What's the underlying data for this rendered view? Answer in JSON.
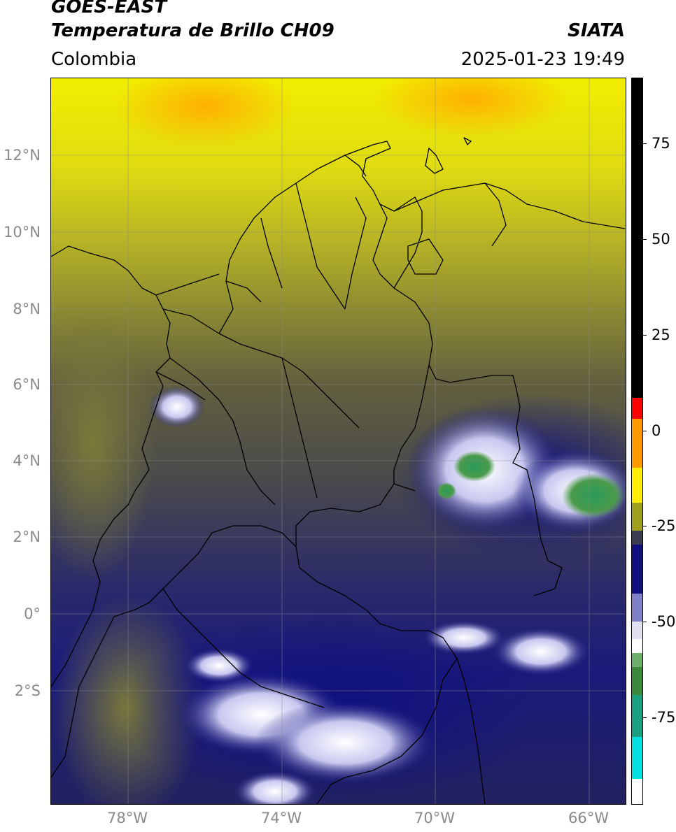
{
  "header": {
    "line1": "GOES-EAST",
    "line2": "Temperatura de Brillo CH09",
    "region": "Colombia",
    "org": "SIATA",
    "datetime": "2025-01-23 19:49"
  },
  "map": {
    "lat_labels": [
      "12°N",
      "10°N",
      "8°N",
      "6°N",
      "4°N",
      "2°N",
      "0°",
      "2°S"
    ],
    "lon_labels": [
      "78°W",
      "74°W",
      "70°W",
      "66°W"
    ]
  },
  "colorbar": {
    "ticks": [
      "75",
      "50",
      "25",
      "0",
      "-25",
      "-50",
      "-75"
    ],
    "palette": [
      "#ffffff",
      "#00e0e0",
      "#1aa080",
      "#3a8a3a",
      "#ffffff",
      "#8080c8",
      "#101080",
      "#3a3a50",
      "#a0a020",
      "#e8e800",
      "#ff9900",
      "#ff0000",
      "#000000"
    ]
  }
}
